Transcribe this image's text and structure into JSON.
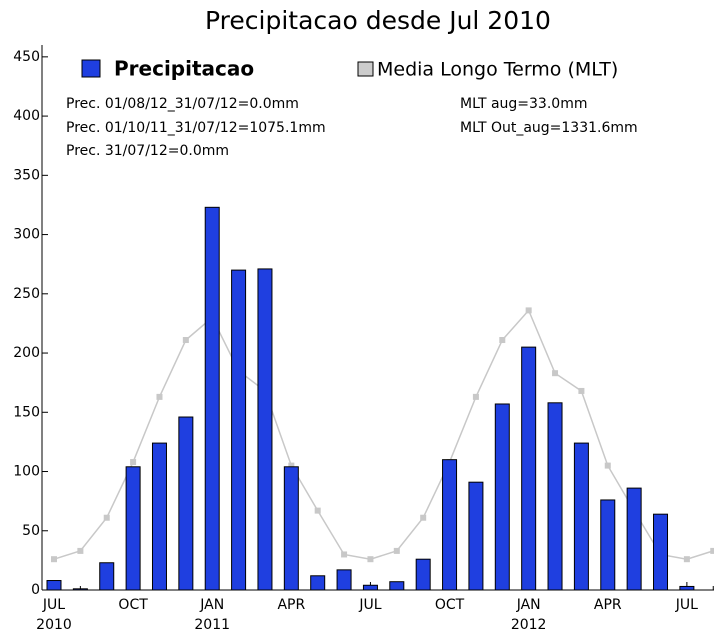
{
  "chart_data": {
    "type": "bar",
    "title": "Precipitacao desde Jul 2010",
    "categories": [
      "JUL",
      null,
      null,
      "OCT",
      null,
      null,
      "JAN",
      null,
      null,
      "APR",
      null,
      null,
      "JUL",
      null,
      null,
      "OCT",
      null,
      null,
      "JAN",
      null,
      null,
      "APR",
      null,
      null,
      "JUL",
      null
    ],
    "years": [
      "2010",
      null,
      null,
      null,
      null,
      null,
      "2011",
      null,
      null,
      null,
      null,
      null,
      null,
      null,
      null,
      null,
      null,
      null,
      "2012",
      null,
      null,
      null,
      null,
      null,
      null,
      null
    ],
    "series": [
      {
        "name": "Precipitacao",
        "type": "bar",
        "color": "#1f3fe0",
        "values": [
          8,
          1,
          23,
          104,
          124,
          146,
          323,
          270,
          271,
          104,
          12,
          17,
          4,
          7,
          26,
          110,
          91,
          157,
          205,
          158,
          124,
          76,
          86,
          64,
          3,
          0
        ]
      },
      {
        "name": "Media Longo Termo (MLT)",
        "type": "line",
        "color": "#c8c8c8",
        "values": [
          26,
          33,
          61,
          108,
          163,
          211,
          230,
          185,
          168,
          105,
          67,
          30,
          26,
          33,
          61,
          108,
          163,
          211,
          236,
          183,
          168,
          105,
          67,
          30,
          26,
          33
        ]
      }
    ],
    "annotations": [
      {
        "text": "Prec. 01/08/12_31/07/12=0.0mm",
        "color": "#3355ff"
      },
      {
        "text": "Prec. 01/10/11_31/07/12=1075.1mm",
        "color": "#3355ff"
      },
      {
        "text": "Prec. 31/07/12=0.0mm",
        "color": "#ff8833"
      },
      {
        "text": "MLT aug=33.0mm",
        "color": "#000000"
      },
      {
        "text": "MLT Out_aug=1331.6mm",
        "color": "#000000"
      }
    ],
    "ylim": [
      0,
      460
    ],
    "yticks": [
      0,
      50,
      100,
      150,
      200,
      250,
      300,
      350,
      400,
      450
    ]
  }
}
